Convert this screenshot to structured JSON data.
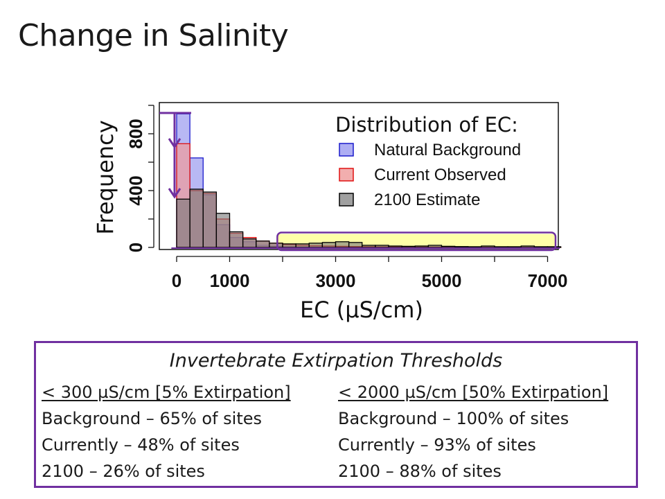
{
  "slide": {
    "title": "Change in Salinity"
  },
  "colors": {
    "natural": "#9a9af0",
    "natural_stroke": "#1a1acc",
    "current": "#ef9a9a",
    "current_stroke": "#e01010",
    "estimate": "#777777",
    "estimate_stroke": "#000000",
    "accent": "#7030a0",
    "highlight": "#ffff99"
  },
  "chart_data": {
    "type": "bar",
    "title": "Distribution of EC:",
    "xlabel": "EC (µS/cm)",
    "ylabel": "Frequency",
    "xlim": [
      -250,
      7300
    ],
    "ylim": [
      0,
      1000
    ],
    "x_ticks": [
      0,
      1000,
      3000,
      5000,
      7000
    ],
    "x_minor_ticks": [
      2000,
      4000,
      6000
    ],
    "y_ticks": [
      0,
      400,
      800
    ],
    "bin_width": 250,
    "bin_starts": [
      0,
      250,
      500,
      750,
      1000,
      1250,
      1500,
      1750,
      2000,
      2250,
      2500,
      2750,
      3000,
      3250,
      3500,
      3750,
      4000,
      4250,
      4500,
      4750,
      5000,
      5250,
      5500,
      5750,
      6000,
      6250,
      6500,
      6750,
      7000
    ],
    "series": [
      {
        "name": "Natural Background",
        "values": [
          940,
          630,
          370,
          160,
          70,
          40,
          15,
          8,
          4,
          2,
          1,
          1,
          0,
          0,
          0,
          0,
          0,
          0,
          0,
          0,
          0,
          0,
          0,
          0,
          0,
          0,
          0,
          0,
          0
        ]
      },
      {
        "name": "Current Observed",
        "values": [
          730,
          400,
          380,
          200,
          100,
          70,
          45,
          30,
          20,
          15,
          12,
          10,
          8,
          6,
          5,
          4,
          4,
          3,
          3,
          3,
          2,
          2,
          2,
          2,
          2,
          1,
          1,
          1,
          1
        ]
      },
      {
        "name": "2100 Estimate",
        "values": [
          340,
          410,
          390,
          240,
          110,
          60,
          45,
          30,
          25,
          25,
          30,
          35,
          40,
          35,
          15,
          15,
          10,
          8,
          10,
          15,
          8,
          6,
          5,
          10,
          5,
          5,
          10,
          5,
          5
        ]
      }
    ],
    "legend_position": "top-right",
    "grid": false
  },
  "thresholds": {
    "title": "Invertebrate Extirpation Thresholds",
    "left": {
      "header": "< 300 µS/cm [5% Extirpation]",
      "lines": [
        "Background – 65% of sites",
        "Currently – 48% of sites",
        "2100 – 26%  of sites"
      ]
    },
    "right": {
      "header": "< 2000 µS/cm [50% Extirpation]",
      "lines": [
        "Background – 100% of sites",
        "Currently – 93% of sites",
        "2100 – 88%  of sites"
      ]
    }
  }
}
